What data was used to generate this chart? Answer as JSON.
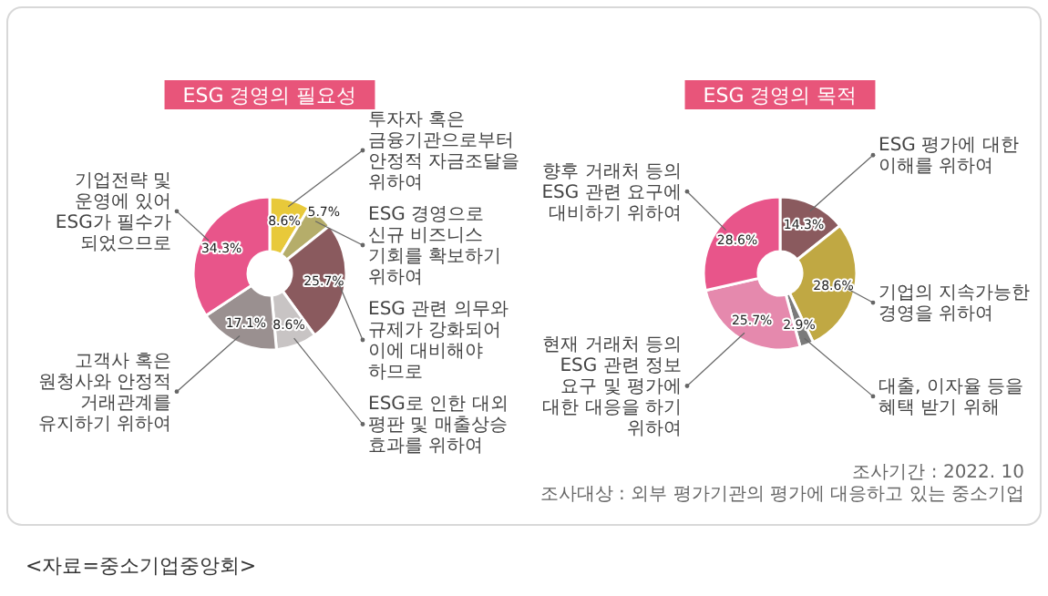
{
  "chart_data": [
    {
      "type": "donut",
      "title": "ESG 경영의 필요성",
      "categories": [
        "투자자 혹은 금융기관으로부터 안정적 자금조달을 위하여",
        "ESG 경영으로 신규 비즈니스 기회를 확보하기 위하여",
        "ESG 관련 의무와 규제가 강화되어 이에 대비해야 하므로",
        "ESG로 인한 대외 평판 및 매출상승 효과를 위하여",
        "고객사 혹은 원청사와 안정적 거래관계를 유지하기 위하여",
        "기업전략 및 운영에 있어 ESG가 필수가 되었으므로"
      ],
      "values": [
        8.6,
        5.7,
        25.7,
        8.6,
        17.1,
        34.3
      ],
      "value_labels": [
        "8.6%",
        "5.7%",
        "25.7%",
        "8.6%",
        "17.1%",
        "34.3%"
      ],
      "colors": [
        "#e8c93a",
        "#b5ad6a",
        "#8a5a5e",
        "#c8c4c4",
        "#9a9090",
        "#e8558a"
      ]
    },
    {
      "type": "donut",
      "title": "ESG 경영의 목적",
      "categories": [
        "ESG 평가에 대한 이해를 위하여",
        "기업의 지속가능한 경영을 위하여",
        "대출, 이자율 등을 혜택 받기 위해",
        "현재 거래처 등의 ESG 관련 정보 요구 및 평가에 대한 대응을 하기 위하여",
        "향후 거래처 등의 ESG 관련 요구에 대비하기 위하여"
      ],
      "values": [
        14.3,
        28.6,
        2.9,
        25.7,
        28.6
      ],
      "value_labels": [
        "14.3%",
        "28.6%",
        "2.9%",
        "25.7%",
        "28.6%"
      ],
      "colors": [
        "#8a5a5e",
        "#c0a843",
        "#7a7a7a",
        "#e589ad",
        "#e8558a"
      ],
      "annotations": [
        "조사기간 : 2022. 10",
        "조사대상 : 외부 평가기관의 평가에 대응하고 있는 중소기업",
        "<자료=중소기업중앙회>"
      ]
    }
  ]
}
